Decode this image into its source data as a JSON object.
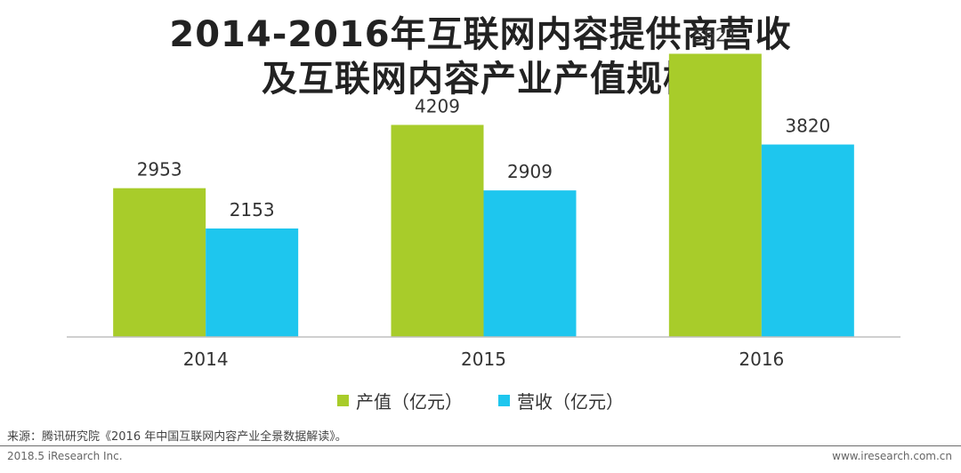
{
  "title_line1": "2014-2016年互联网内容提供商营收",
  "title_line2": "及互联网内容产业产值规模",
  "chart_data": {
    "type": "bar",
    "categories": [
      "2014",
      "2015",
      "2016"
    ],
    "series": [
      {
        "name": "产值（亿元）",
        "values": [
          2953,
          4209,
          5621
        ],
        "color": "#a8cc2a"
      },
      {
        "name": "营收（亿元）",
        "values": [
          2153,
          2909,
          3820
        ],
        "color": "#1ec6ee"
      }
    ],
    "ylim": [
      0,
      6000
    ],
    "grid": false,
    "legend_position": "bottom"
  },
  "source": "来源：腾讯研究院《2016 年中国互联网内容产业全景数据解读》。",
  "footer_left": "2018.5 iResearch Inc.",
  "footer_right": "www.iresearch.com.cn"
}
